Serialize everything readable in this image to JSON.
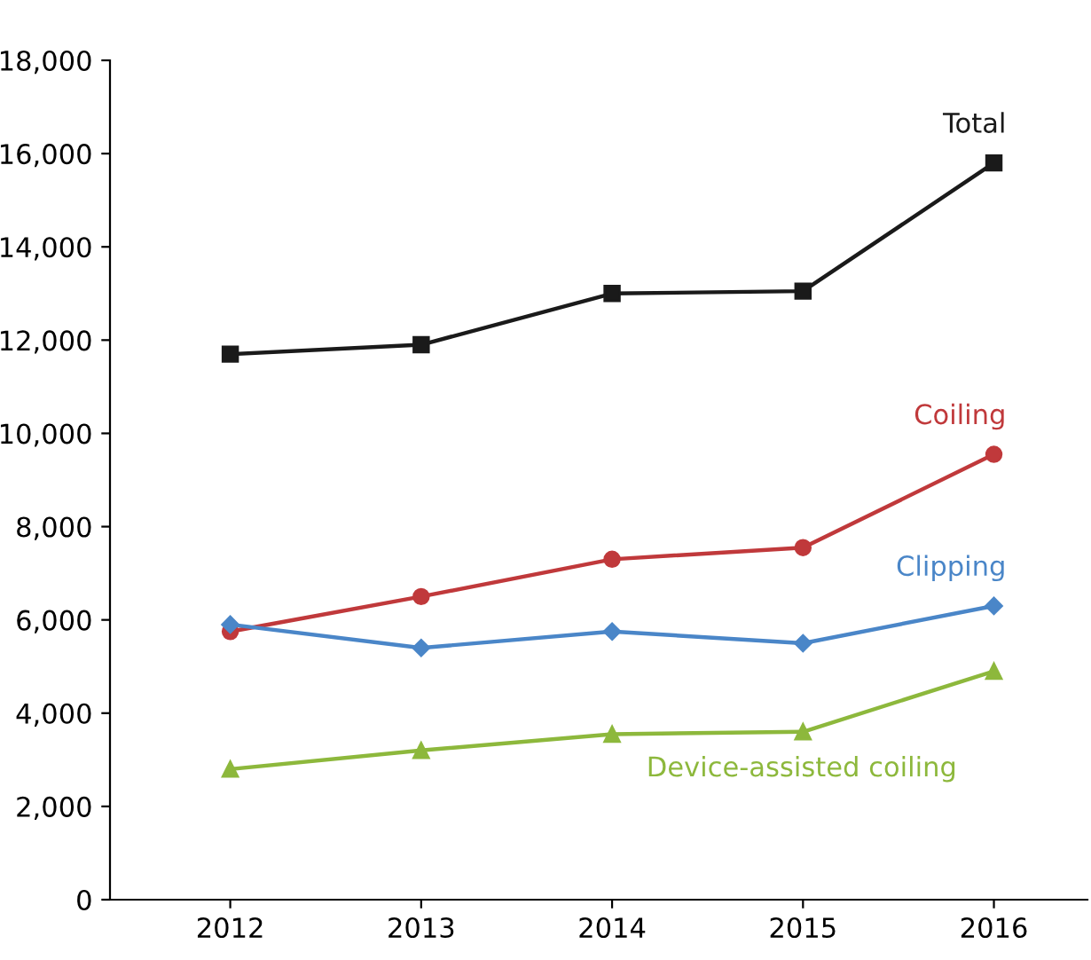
{
  "chart_data": {
    "type": "line",
    "x": [
      2012,
      2013,
      2014,
      2015,
      2016
    ],
    "xlim": [
      2011.37,
      2016.49
    ],
    "xticks": [
      2012,
      2013,
      2014,
      2015,
      2016
    ],
    "ylim": [
      0,
      18000
    ],
    "yticks": [
      0,
      {
        "value": 2000,
        "label": "2,000"
      },
      {
        "value": 4000,
        "label": "4,000"
      },
      {
        "value": 6000,
        "label": "6,000"
      },
      {
        "value": 8000,
        "label": "8,000"
      },
      {
        "value": 10000,
        "label": "10,000"
      },
      {
        "value": 12000,
        "label": "12,000"
      },
      {
        "value": 14000,
        "label": "14,000"
      },
      {
        "value": 16000,
        "label": "16,000"
      },
      {
        "value": 18000,
        "label": "18,000"
      }
    ],
    "grid": false,
    "legend": false,
    "line_style": "solid",
    "series": [
      {
        "name": "Total",
        "color": "#1a1a1a",
        "marker": "square",
        "values": [
          11700,
          11900,
          13000,
          13050,
          15800
        ]
      },
      {
        "name": "Coiling",
        "color": "#c0393b",
        "marker": "circle",
        "values": [
          5750,
          6500,
          7300,
          7550,
          9550
        ]
      },
      {
        "name": "Clipping",
        "color": "#4a86c8",
        "marker": "diamond",
        "values": [
          5900,
          5400,
          5750,
          5500,
          6300
        ]
      },
      {
        "name": "Device-assisted coiling",
        "color": "#8db83c",
        "marker": "triangle",
        "values": [
          2800,
          3200,
          3550,
          3600,
          4900
        ]
      }
    ]
  }
}
